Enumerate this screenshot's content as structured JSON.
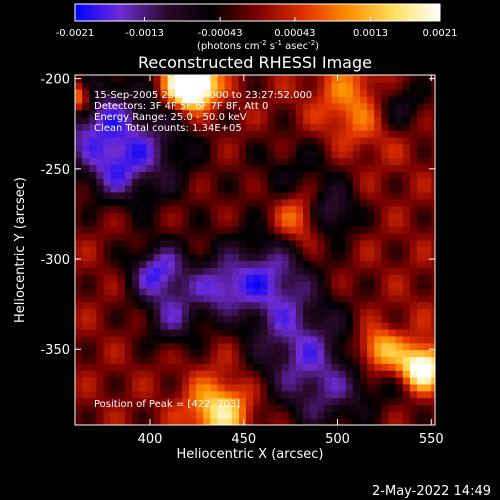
{
  "colorbar": {
    "tick_labels": [
      "-0.0021",
      "-0.0013",
      "-0.00043",
      "0.00043",
      "0.0013",
      "0.0021"
    ],
    "tick_values": [
      -0.0021,
      -0.0013,
      -0.00043,
      0.00043,
      0.0013,
      0.0021
    ],
    "range": [
      -0.0021,
      0.0021
    ],
    "units_main": "(photons cm",
    "units_sup1": "-2",
    "units_mid": " s",
    "units_sup2": "-1",
    "units_end": " asec",
    "units_sup3": "-2",
    "units_close": ")",
    "colormap": [
      "#0000ff",
      "#6f2cd6",
      "#2a0a2a",
      "#000000",
      "#7a0000",
      "#e03000",
      "#ff9000",
      "#ffe060",
      "#ffffff"
    ]
  },
  "chart_data": {
    "type": "heatmap",
    "title": "Reconstructed RHESSI Image",
    "xlabel": "Heliocentric X (arcsec)",
    "ylabel": "Heliocentric Y (arcsec)",
    "xlim": [
      360,
      552
    ],
    "ylim": [
      -392,
      -198
    ],
    "x_ticks": [
      400,
      450,
      500,
      550
    ],
    "y_ticks": [
      -200,
      -250,
      -300,
      -350
    ],
    "x_tick_labels": [
      "400",
      "450",
      "500",
      "550"
    ],
    "y_tick_labels": [
      "-200",
      "-250",
      "-300",
      "-350"
    ],
    "annotations": [
      "15-Sep-2005 23:22:16.000 to 23:27:52.000",
      "Detectors: 3F 4F 5F 6F 7F 8F, Att 0",
      "Energy Range: 25.0 - 50.0 keV",
      "Clean    Total counts: 1.34E+05"
    ],
    "peak_label": "Position of Peak = [422,-203]",
    "peak": [
      422,
      -203
    ],
    "seed": 17
  },
  "footer": {
    "timestamp": "2-May-2022 14:49"
  }
}
